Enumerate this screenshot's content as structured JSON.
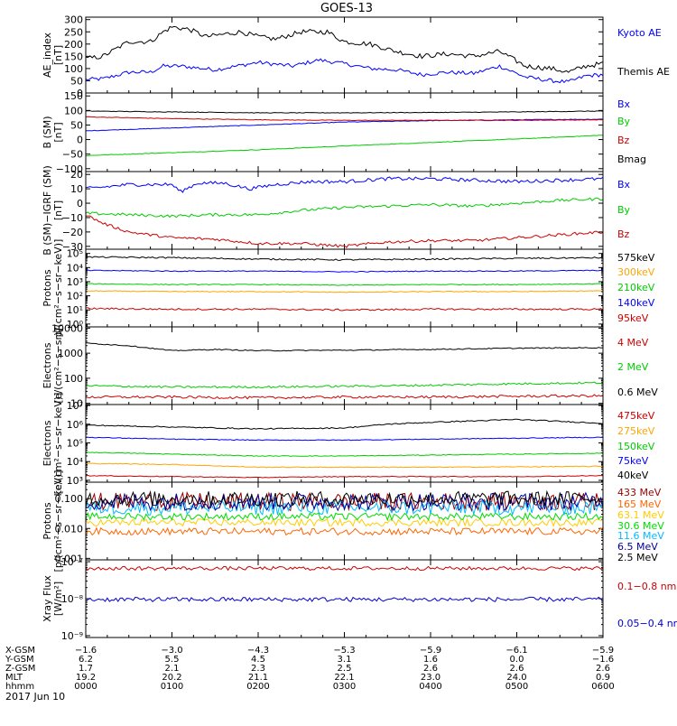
{
  "title": "GOES-13",
  "footer_date": "2017 Jun 10",
  "ephemeris": {
    "labels": [
      "X-GSM",
      "Y-GSM",
      "Z-GSM",
      "MLT",
      "hhmm"
    ],
    "columns": [
      [
        "−1.6",
        "6.2",
        "1.7",
        "19.2",
        "0000"
      ],
      [
        "−3.0",
        "5.5",
        "2.1",
        "20.2",
        "0100"
      ],
      [
        "−4.3",
        "4.5",
        "2.3",
        "21.1",
        "0200"
      ],
      [
        "−5.3",
        "3.1",
        "2.5",
        "22.1",
        "0300"
      ],
      [
        "−5.9",
        "1.6",
        "2.6",
        "23.0",
        "0400"
      ],
      [
        "−6.1",
        "0.0",
        "2.6",
        "24.0",
        "0500"
      ],
      [
        "−5.9",
        "−1.6",
        "2.6",
        "0.9",
        "0600"
      ]
    ]
  },
  "chart_data": [
    {
      "type": "line",
      "ylabel": [
        "AE_index",
        "[nT]"
      ],
      "ticks": [
        {
          "v": 0,
          "l": "0"
        },
        {
          "v": 50,
          "l": "50"
        },
        {
          "v": 100,
          "l": "100"
        },
        {
          "v": 150,
          "l": "150"
        },
        {
          "v": 200,
          "l": "200"
        },
        {
          "v": 250,
          "l": "250"
        },
        {
          "v": 300,
          "l": "300"
        }
      ],
      "ylim": [
        0,
        310
      ],
      "log": false,
      "series": [
        {
          "name": "Kyoto AE",
          "color": "#0000ff",
          "x": [
            0,
            0.2,
            0.5,
            0.75,
            0.9,
            1.1,
            1.5,
            2.0,
            2.4,
            2.7,
            3.0,
            3.3,
            3.6,
            3.9,
            4.2,
            4.5,
            4.8,
            5.1,
            5.4,
            5.6,
            5.8,
            6.0
          ],
          "y": [
            55,
            58,
            85,
            85,
            110,
            110,
            95,
            125,
            110,
            135,
            120,
            100,
            95,
            75,
            85,
            80,
            110,
            65,
            50,
            45,
            70,
            75
          ],
          "noise": 8
        },
        {
          "name": "Themis AE",
          "color": "#000000",
          "x": [
            0,
            0.2,
            0.5,
            0.75,
            0.9,
            1.0,
            1.2,
            1.4,
            1.8,
            2.0,
            2.2,
            2.5,
            2.8,
            3.0,
            3.3,
            3.6,
            3.9,
            4.2,
            4.5,
            4.8,
            5.1,
            5.4,
            5.6,
            5.8,
            6.0
          ],
          "y": [
            140,
            150,
            210,
            210,
            250,
            270,
            260,
            230,
            250,
            230,
            220,
            250,
            250,
            210,
            200,
            170,
            150,
            160,
            150,
            170,
            110,
            100,
            85,
            110,
            120
          ],
          "noise": 10
        }
      ]
    },
    {
      "type": "line",
      "ylabel": [
        "B (SM)",
        "[nT]"
      ],
      "ticks": [
        {
          "v": -100,
          "l": "−100"
        },
        {
          "v": -50,
          "l": "−50"
        },
        {
          "v": 0,
          "l": "0"
        },
        {
          "v": 50,
          "l": "50"
        },
        {
          "v": 100,
          "l": "100"
        },
        {
          "v": 150,
          "l": "150"
        }
      ],
      "ylim": [
        -110,
        160
      ],
      "log": false,
      "series": [
        {
          "name": "Bx",
          "color": "#0000ff",
          "x": [
            0,
            1,
            2,
            3,
            4,
            5,
            6
          ],
          "y": [
            30,
            40,
            50,
            60,
            65,
            68,
            70
          ],
          "noise": 1
        },
        {
          "name": "By",
          "color": "#00cc00",
          "x": [
            0,
            1,
            2,
            3,
            4,
            5,
            6
          ],
          "y": [
            -55,
            -45,
            -35,
            -22,
            -10,
            2,
            15
          ],
          "noise": 1
        },
        {
          "name": "Bz",
          "color": "#cc0000",
          "x": [
            0,
            1,
            2,
            3,
            4,
            5,
            6
          ],
          "y": [
            78,
            72,
            68,
            66,
            66,
            66,
            68
          ],
          "noise": 1
        },
        {
          "name": "Bmag",
          "color": "#000000",
          "x": [
            0,
            1,
            2,
            3,
            4,
            5,
            6
          ],
          "y": [
            98,
            95,
            92,
            92,
            93,
            95,
            98
          ],
          "noise": 1
        }
      ]
    },
    {
      "type": "line",
      "ylabel": [
        "B (SM)−IGRF (SM)",
        "[nT]"
      ],
      "ticks": [
        {
          "v": -30,
          "l": "−30"
        },
        {
          "v": -20,
          "l": "−20"
        },
        {
          "v": -10,
          "l": "−10"
        },
        {
          "v": 0,
          "l": "0"
        },
        {
          "v": 10,
          "l": "10"
        },
        {
          "v": 20,
          "l": "20"
        }
      ],
      "ylim": [
        -32,
        22
      ],
      "log": false,
      "series": [
        {
          "name": "Bx",
          "color": "#0000ff",
          "x": [
            0,
            0.5,
            1.0,
            1.1,
            1.3,
            1.6,
            1.9,
            2.2,
            2.6,
            3.0,
            3.5,
            4.0,
            4.5,
            5.0,
            5.5,
            6.0
          ],
          "y": [
            10,
            13,
            13,
            8,
            14,
            14,
            10,
            13,
            15,
            15,
            17,
            17,
            16,
            15,
            16,
            17
          ],
          "noise": 1.2
        },
        {
          "name": "By",
          "color": "#00cc00",
          "x": [
            0,
            0.5,
            1.0,
            1.5,
            2.0,
            2.5,
            3.0,
            3.5,
            4.0,
            4.5,
            5.0,
            5.5,
            6.0
          ],
          "y": [
            -7,
            -8,
            -9,
            -8,
            -8,
            -5,
            -3,
            -2,
            -1,
            -2,
            0,
            2,
            3
          ],
          "noise": 1
        },
        {
          "name": "Bz",
          "color": "#cc0000",
          "x": [
            0,
            0.2,
            0.5,
            1.0,
            1.5,
            2.0,
            2.5,
            3.0,
            3.5,
            4.0,
            4.5,
            5.0,
            5.5,
            6.0
          ],
          "y": [
            -8,
            -14,
            -20,
            -24,
            -25,
            -28,
            -28,
            -30,
            -27,
            -26,
            -26,
            -24,
            -22,
            -20
          ],
          "noise": 1
        }
      ]
    },
    {
      "type": "line",
      "ylabel": [
        "Protons",
        "p/(cm²−s−sr−keV)]"
      ],
      "ticks": [
        {
          "v": 0,
          "l": "10⁰"
        },
        {
          "v": 1,
          "l": "10¹"
        },
        {
          "v": 2,
          "l": "10²"
        },
        {
          "v": 3,
          "l": "10³"
        },
        {
          "v": 4,
          "l": "10⁴"
        },
        {
          "v": 5,
          "l": "10⁵"
        }
      ],
      "ylim": [
        -0.2,
        5.3
      ],
      "log": true,
      "series": [
        {
          "name": "575keV",
          "color": "#000000",
          "x": [
            0,
            1,
            2,
            3,
            4,
            5,
            6
          ],
          "y": [
            4.75,
            4.7,
            4.6,
            4.55,
            4.6,
            4.65,
            4.7
          ],
          "noise": 0.05
        },
        {
          "name": "300keV",
          "color": "#ffa500",
          "x": [
            0,
            1,
            2,
            3,
            4,
            5,
            6
          ],
          "y": [
            2.35,
            2.3,
            2.3,
            2.25,
            2.3,
            2.3,
            2.35
          ],
          "noise": 0.03
        },
        {
          "name": "210keV",
          "color": "#00cc00",
          "x": [
            0,
            1,
            2,
            3,
            4,
            5,
            6
          ],
          "y": [
            2.85,
            2.8,
            2.8,
            2.75,
            2.8,
            2.8,
            2.85
          ],
          "noise": 0.03
        },
        {
          "name": "140keV",
          "color": "#0000ff",
          "x": [
            0,
            1,
            2,
            3,
            4,
            5,
            6
          ],
          "y": [
            3.8,
            3.75,
            3.75,
            3.7,
            3.75,
            3.75,
            3.8
          ],
          "noise": 0.03
        },
        {
          "name": "95keV",
          "color": "#cc0000",
          "x": [
            0,
            1,
            2,
            3,
            4,
            5,
            6
          ],
          "y": [
            1.1,
            1.05,
            1.05,
            1.0,
            1.05,
            1.05,
            1.05
          ],
          "noise": 0.06
        }
      ]
    },
    {
      "type": "line",
      "ylabel": [
        "Electrons",
        "[e/(cm²−s−sr)]"
      ],
      "ticks": [
        {
          "v": 1,
          "l": "10"
        },
        {
          "v": 2,
          "l": "100"
        },
        {
          "v": 3,
          "l": "1000"
        },
        {
          "v": 4,
          "l": "10000"
        }
      ],
      "ylim": [
        0.95,
        4.05
      ],
      "log": true,
      "series": [
        {
          "name": "4 MeV",
          "color": "#cc0000",
          "x": [
            0,
            1,
            2,
            3,
            4,
            5,
            6
          ],
          "y": [
            1.25,
            1.25,
            1.22,
            1.25,
            1.25,
            1.28,
            1.3
          ],
          "noise": 0.05
        },
        {
          "name": "2 MeV",
          "color": "#00cc00",
          "x": [
            0,
            1,
            2,
            3,
            4,
            5,
            6
          ],
          "y": [
            1.7,
            1.65,
            1.65,
            1.68,
            1.72,
            1.78,
            1.82
          ],
          "noise": 0.04
        },
        {
          "name": "0.6 MeV",
          "color": "#000000",
          "x": [
            0,
            0.5,
            1.0,
            1.5,
            2,
            3,
            4,
            5,
            6
          ],
          "y": [
            3.4,
            3.3,
            3.1,
            3.15,
            3.1,
            3.12,
            3.15,
            3.2,
            3.22
          ],
          "noise": 0.02
        }
      ]
    },
    {
      "type": "line",
      "ylabel": [
        "Electrons",
        "[e/(cm²−s−sr−keV)]"
      ],
      "ticks": [
        {
          "v": 3,
          "l": "10³"
        },
        {
          "v": 4,
          "l": "10⁴"
        },
        {
          "v": 5,
          "l": "10⁵"
        },
        {
          "v": 6,
          "l": "10⁶"
        },
        {
          "v": 7,
          "l": "10⁷"
        }
      ],
      "ylim": [
        2.9,
        7.05
      ],
      "log": true,
      "series": [
        {
          "name": "475keV",
          "color": "#cc0000",
          "x": [
            0,
            1,
            2,
            3,
            4,
            5,
            6
          ],
          "y": [
            3.25,
            3.2,
            3.15,
            3.2,
            3.2,
            3.2,
            3.25
          ],
          "noise": 0.02
        },
        {
          "name": "275keV",
          "color": "#ffa500",
          "x": [
            0,
            1,
            2,
            3,
            4,
            5,
            6
          ],
          "y": [
            3.9,
            3.85,
            3.7,
            3.7,
            3.7,
            3.72,
            3.75
          ],
          "noise": 0.02
        },
        {
          "name": "150keV",
          "color": "#00cc00",
          "x": [
            0,
            1,
            2,
            3,
            4,
            5,
            6
          ],
          "y": [
            4.5,
            4.4,
            4.3,
            4.3,
            4.35,
            4.4,
            4.45
          ],
          "noise": 0.02
        },
        {
          "name": "75keV",
          "color": "#0000ff",
          "x": [
            0,
            1,
            2,
            3,
            4,
            5,
            6
          ],
          "y": [
            5.3,
            5.2,
            5.15,
            5.15,
            5.2,
            5.25,
            5.3
          ],
          "noise": 0.02
        },
        {
          "name": "40keV",
          "color": "#000000",
          "x": [
            0,
            1,
            2,
            3,
            3.5,
            4,
            5,
            5.5,
            6
          ],
          "y": [
            5.95,
            5.85,
            5.75,
            5.8,
            6.0,
            6.1,
            6.25,
            6.15,
            6.05
          ],
          "noise": 0.03
        }
      ]
    },
    {
      "type": "line",
      "ylabel": [
        "Protons",
        "[p/(cm²−s−sr−keV)]"
      ],
      "ticks": [
        {
          "v": -3,
          "l": "0.001"
        },
        {
          "v": -2,
          "l": "0.010"
        },
        {
          "v": -1,
          "l": "0.100"
        }
      ],
      "ylim": [
        -3.05,
        -0.45
      ],
      "log": true,
      "series": [
        {
          "name": "433 MeV",
          "color": "#990000",
          "x": [
            0,
            6
          ],
          "y": [
            -1.1,
            -1.1
          ],
          "noise": 0.3
        },
        {
          "name": "165 MeV",
          "color": "#ff6600",
          "x": [
            0,
            6
          ],
          "y": [
            -2.1,
            -2.1
          ],
          "noise": 0.12
        },
        {
          "name": "63.1 MeV",
          "color": "#ffcc00",
          "x": [
            0,
            6
          ],
          "y": [
            -1.8,
            -1.8
          ],
          "noise": 0.12
        },
        {
          "name": "30.6 MeV",
          "color": "#00dd00",
          "x": [
            0,
            6
          ],
          "y": [
            -1.6,
            -1.6
          ],
          "noise": 0.12
        },
        {
          "name": "11.6 MeV",
          "color": "#00bbff",
          "x": [
            0,
            6
          ],
          "y": [
            -1.3,
            -1.3
          ],
          "noise": 0.25
        },
        {
          "name": "6.5 MeV",
          "color": "#000099",
          "x": [
            0,
            6
          ],
          "y": [
            -1.1,
            -1.1
          ],
          "noise": 0.3
        },
        {
          "name": "2.5 MeV",
          "color": "#000000",
          "x": [
            0,
            6
          ],
          "y": [
            -1.0,
            -1.0
          ],
          "noise": 0.25
        }
      ]
    },
    {
      "type": "line",
      "ylabel": [
        "Xray Flux",
        "[W/m²]"
      ],
      "ticks": [
        {
          "v": -9,
          "l": "10⁻⁹"
        },
        {
          "v": -8,
          "l": "10⁻⁸"
        },
        {
          "v": -7,
          "l": "10⁻⁷"
        }
      ],
      "ylim": [
        -9.05,
        -6.95
      ],
      "log": true,
      "series": [
        {
          "name": "0.1−0.8 nm",
          "color": "#cc0000",
          "x": [
            0,
            6
          ],
          "y": [
            -7.18,
            -7.18
          ],
          "noise": 0.05
        },
        {
          "name": "0.05−0.4 nm",
          "color": "#0000cc",
          "x": [
            0,
            6
          ],
          "y": [
            -8.02,
            -8.02
          ],
          "noise": 0.06
        }
      ]
    }
  ]
}
